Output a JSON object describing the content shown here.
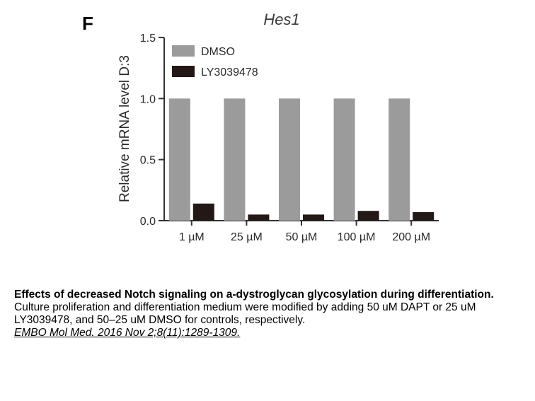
{
  "figure": {
    "panel_letter": "F"
  },
  "chart_data": {
    "type": "bar",
    "title": "Hes1",
    "ylabel": "Relative mRNA level D:3",
    "xlabel": "",
    "ylim": [
      0,
      1.5
    ],
    "yticks": [
      0.0,
      0.5,
      1.0,
      1.5
    ],
    "ytick_labels": [
      "0.0",
      "0.5",
      "1.0",
      "1.5"
    ],
    "categories": [
      "1 µM",
      "25 µM",
      "50 µM",
      "100 µM",
      "200 µM"
    ],
    "series": [
      {
        "name": "DMSO",
        "values": [
          1.0,
          1.0,
          1.0,
          1.0,
          1.0
        ],
        "color": "#9b9b9b"
      },
      {
        "name": "LY3039478",
        "values": [
          0.14,
          0.05,
          0.05,
          0.08,
          0.07
        ],
        "color": "#231815"
      }
    ],
    "grid": false,
    "legend_position": "top-left"
  },
  "caption": {
    "title": "Effects of decreased Notch signaling on a-dystroglycan glycosylation during differentiation.",
    "body": "Culture proliferation and differentiation medium were modified by adding 50 uM DAPT or 25 uM LY3039478, and 50–25 uM DMSO for controls, respectively.",
    "citation": "EMBO Mol Med. 2016 Nov 2;8(11):1289-1309."
  }
}
